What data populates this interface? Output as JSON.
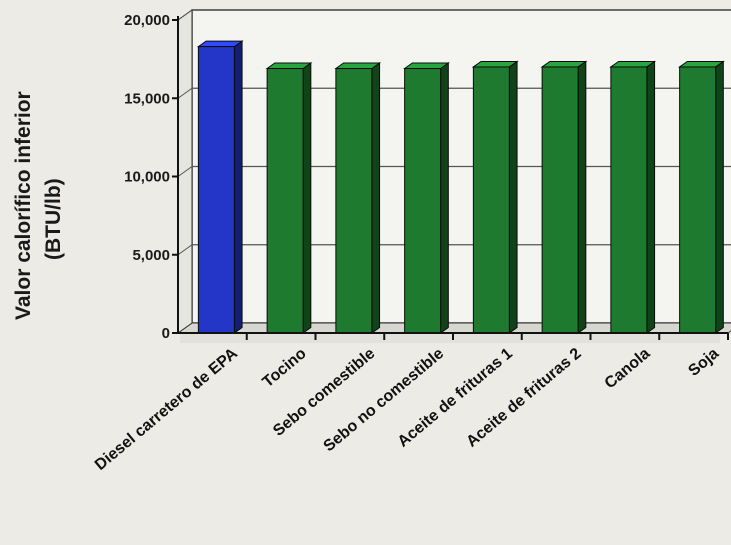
{
  "chart_data": {
    "type": "bar",
    "title": "",
    "ylabel_line1": "Valor calorífico inferior",
    "ylabel_line2": "(BTU/lb)",
    "xlabel": "",
    "ylim": [
      0,
      20000
    ],
    "yticks": [
      "0",
      "5,000",
      "10,000",
      "15,000",
      "20,000"
    ],
    "ytick_values": [
      0,
      5000,
      10000,
      15000,
      20000
    ],
    "grid": true,
    "categories": [
      "Diesel carretero de EPA",
      "Tocino",
      "Sebo comestible",
      "Sebo no comestible",
      "Aceite de frituras 1",
      "Aceite de frituras 2",
      "Canola",
      "Soja"
    ],
    "values": [
      18300,
      16900,
      16900,
      16900,
      17000,
      17000,
      17000,
      17000
    ],
    "colors": [
      "#2436c8",
      "#1e7a2e",
      "#1e7a2e",
      "#1e7a2e",
      "#1e7a2e",
      "#1e7a2e",
      "#1e7a2e",
      "#1e7a2e"
    ]
  }
}
